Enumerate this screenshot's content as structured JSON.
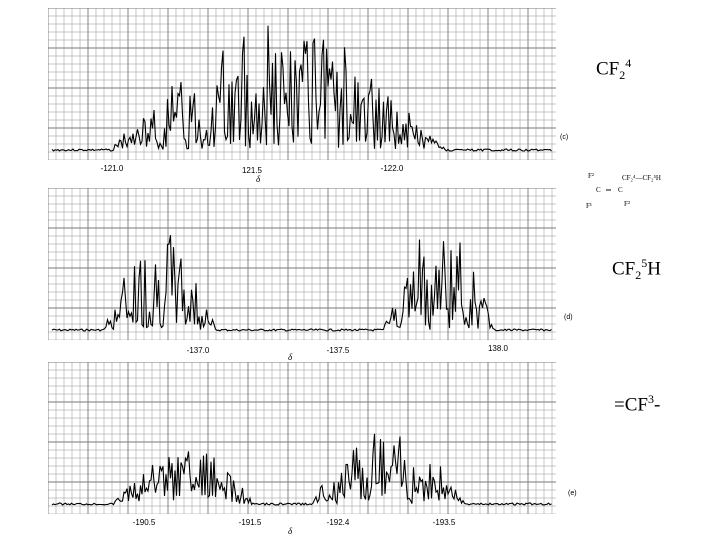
{
  "panels": [
    {
      "id": "c",
      "label": "(c)",
      "delta": "δ",
      "ticks": [
        "-121.0",
        "121.5",
        "-122.0"
      ],
      "groups": [
        {
          "from": 0.13,
          "to": 0.78,
          "amp": 0.92,
          "seed": 3
        }
      ]
    },
    {
      "id": "d",
      "label": "(d)",
      "delta": "δ",
      "ticks": [
        "-137.0",
        "-137.5",
        "138.0"
      ],
      "groups": [
        {
          "from": 0.11,
          "to": 0.33,
          "amp": 0.75,
          "seed": 7
        },
        {
          "from": 0.66,
          "to": 0.88,
          "amp": 0.8,
          "seed": 11
        }
      ]
    },
    {
      "id": "e",
      "label": "(e)",
      "delta": "δ",
      "ticks": [
        "-190.5",
        "-191.5",
        "-192.4",
        "-193.5"
      ],
      "groups": [
        {
          "from": 0.13,
          "to": 0.4,
          "amp": 0.45,
          "seed": 5
        },
        {
          "from": 0.52,
          "to": 0.82,
          "amp": 0.55,
          "seed": 13
        }
      ]
    }
  ],
  "side_labels": {
    "cf2_4": {
      "base": "CF",
      "sub": "2",
      "sup": "4"
    },
    "cf2_5h": {
      "base": "CF",
      "sub": "2",
      "sup": "5",
      "tail": "H"
    },
    "cf3": {
      "base": "=CF",
      "sup": "3",
      "tail": "-"
    }
  },
  "structure": {
    "f2": "F²",
    "f1": "F¹",
    "f3": "F³",
    "c1": "C",
    "c2": "C",
    "eq": "═",
    "chain": "CF₂⁴—CF₂⁵H"
  },
  "colors": {
    "grid": "#7a7a7a",
    "trace": "#000000",
    "paper": "#ffffff"
  }
}
